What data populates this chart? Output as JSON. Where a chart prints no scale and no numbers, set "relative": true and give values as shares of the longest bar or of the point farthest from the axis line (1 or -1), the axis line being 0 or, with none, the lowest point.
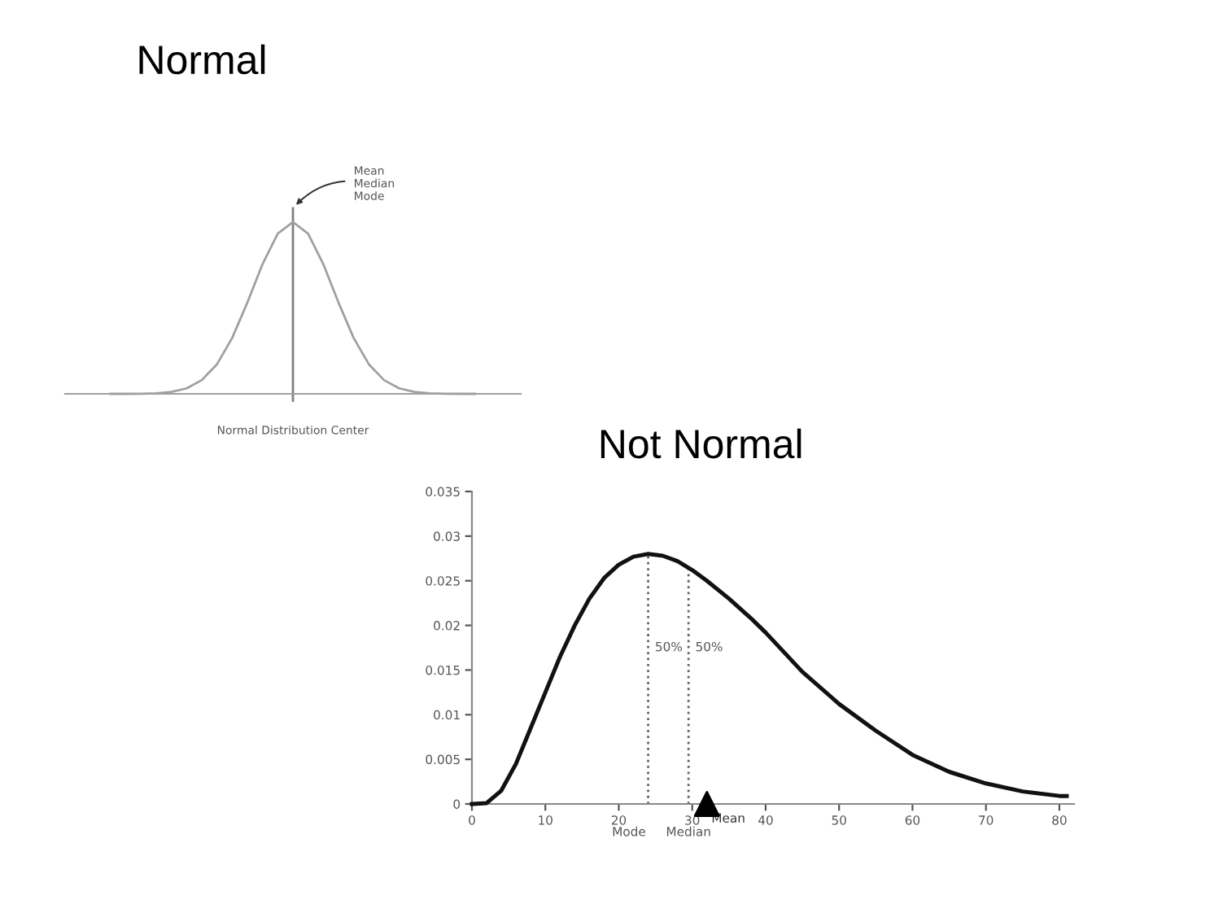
{
  "chart_data": [
    {
      "type": "line",
      "title": "Normal",
      "xlabel": "Normal Distribution Center",
      "relative": true,
      "categories": [
        null,
        null,
        null,
        null,
        null,
        null,
        null,
        null,
        null,
        null,
        null,
        null,
        null,
        null,
        null,
        null,
        null,
        null,
        null,
        null,
        null,
        null,
        null,
        null,
        null
      ],
      "series": [
        {
          "color": "#a0a0a0",
          "values": [
            0,
            0,
            0.001,
            0.003,
            0.011,
            0.032,
            0.08,
            0.172,
            0.325,
            0.531,
            0.755,
            0.932,
            1,
            0.932,
            0.755,
            0.531,
            0.325,
            0.172,
            0.08,
            0.032,
            0.011,
            0.003,
            0.001,
            0,
            0
          ]
        }
      ],
      "annotations": [
        "Mean\nMedian\nMode"
      ],
      "grid": false,
      "legend": false
    },
    {
      "type": "line",
      "title": "Not Normal",
      "xlim": [
        0,
        82
      ],
      "ylim": [
        0,
        0.035
      ],
      "xticks": [
        0,
        10,
        20,
        30,
        40,
        50,
        60,
        70,
        80
      ],
      "yticks": [
        0,
        0.005,
        0.01,
        0.015,
        0.02,
        0.025,
        0.03,
        0.035
      ],
      "series": [
        {
          "color": "#111111",
          "x": [
            0,
            2,
            4,
            6,
            8,
            10,
            12,
            14,
            16,
            18,
            20,
            22,
            24,
            26,
            28,
            30,
            32,
            35,
            38,
            40,
            45,
            50,
            55,
            60,
            65,
            70,
            75,
            80,
            81
          ],
          "values": [
            0,
            0.0001,
            0.0015,
            0.0045,
            0.0085,
            0.0125,
            0.0165,
            0.02,
            0.023,
            0.0253,
            0.0268,
            0.0277,
            0.028,
            0.0278,
            0.0272,
            0.0262,
            0.025,
            0.023,
            0.0208,
            0.0192,
            0.0148,
            0.0112,
            0.0082,
            0.0055,
            0.0036,
            0.0023,
            0.0014,
            0.0009,
            0.0009
          ]
        },
        {
          "type": "scatter",
          "name": "Mean",
          "color": "#000000",
          "marker": "triangle",
          "x": [
            32
          ],
          "values": [
            0
          ]
        }
      ],
      "ref_lines": [
        {
          "axis": "x",
          "value": 24,
          "label": "Mode",
          "color": "#666666",
          "line_style": "dotted"
        },
        {
          "axis": "x",
          "value": 29.5,
          "label": "Median",
          "color": "#666666",
          "line_style": "dotted"
        }
      ],
      "annotations": [
        "50%",
        "50%"
      ],
      "grid": false,
      "legend": false
    }
  ]
}
